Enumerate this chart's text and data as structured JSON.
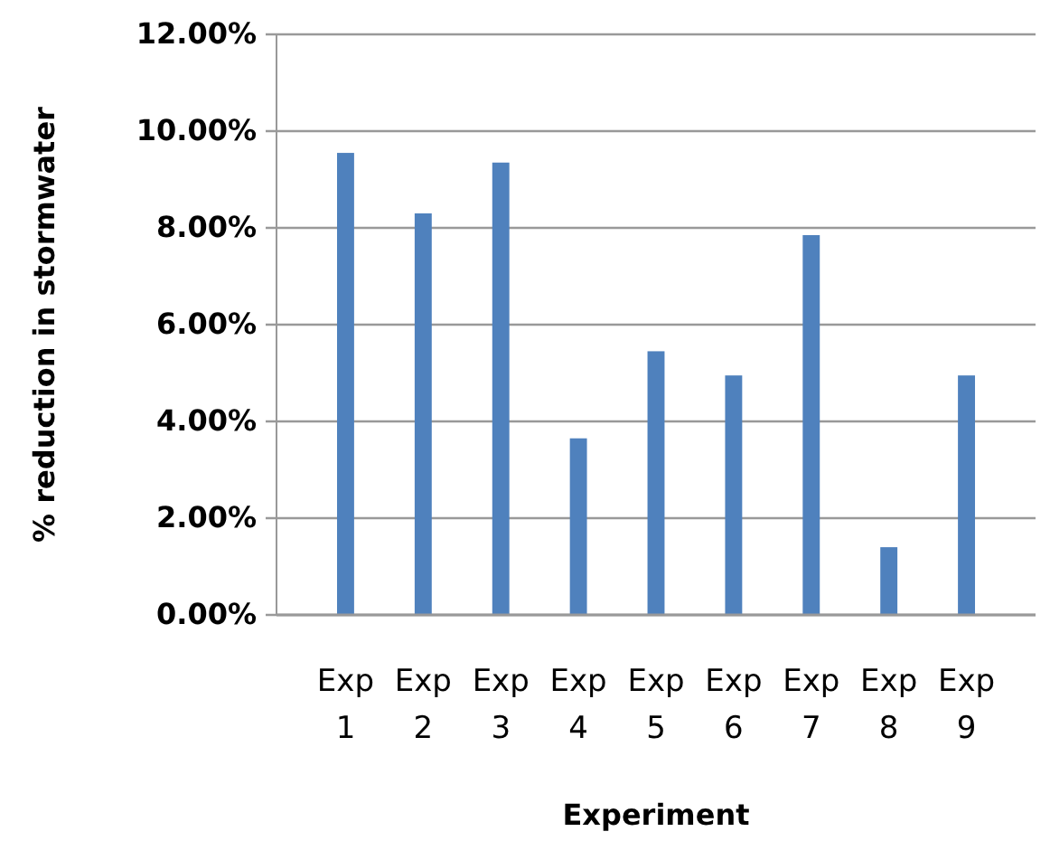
{
  "chart_data": {
    "type": "bar",
    "xlabel": "Experiment",
    "ylabel": "% reduction in stormwater",
    "categories": [
      "Exp 1",
      "Exp 2",
      "Exp 3",
      "Exp 4",
      "Exp 5",
      "Exp 6",
      "Exp 7",
      "Exp 8",
      "Exp 9"
    ],
    "values": [
      9.55,
      8.3,
      9.35,
      3.65,
      5.45,
      4.95,
      7.85,
      1.4,
      4.95
    ],
    "color": "#4f81bd",
    "ylim": [
      0,
      12
    ],
    "yticks": [
      {
        "value": 0,
        "label": "0.00%"
      },
      {
        "value": 2,
        "label": "2.00%"
      },
      {
        "value": 4,
        "label": "4.00%"
      },
      {
        "value": 6,
        "label": "6.00%"
      },
      {
        "value": 8,
        "label": "8.00%"
      },
      {
        "value": 10,
        "label": "10.00%"
      },
      {
        "value": 12,
        "label": "12.00%"
      }
    ],
    "grid": "y"
  }
}
